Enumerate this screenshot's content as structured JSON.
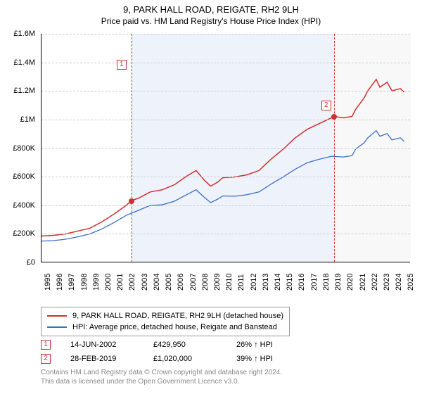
{
  "title_line1": "9, PARK HALL ROAD, REIGATE, RH2 9LH",
  "title_line2": "Price paid vs. HM Land Registry's House Price Index (HPI)",
  "chart": {
    "type": "line",
    "background_color": "#ffffff",
    "grid_color": "#cccccc",
    "axis_color": "#000000",
    "title_fontsize": 13,
    "label_fontsize": 11,
    "x_years": [
      1995,
      1996,
      1997,
      1998,
      1999,
      2000,
      2001,
      2002,
      2003,
      2004,
      2005,
      2006,
      2007,
      2008,
      2009,
      2010,
      2011,
      2012,
      2013,
      2014,
      2015,
      2016,
      2017,
      2018,
      2019,
      2020,
      2021,
      2022,
      2023,
      2024,
      2025
    ],
    "x_min": 1995,
    "x_max": 2025.5,
    "y_ticks": [
      0,
      200000,
      400000,
      600000,
      800000,
      1000000,
      1200000,
      1400000,
      1600000
    ],
    "y_labels": [
      "£0",
      "£200K",
      "£400K",
      "£600K",
      "£800K",
      "£1M",
      "£1.2M",
      "£1.4M",
      "£1.6M"
    ],
    "y_min": 0,
    "y_max": 1600000,
    "shade_ranges": [
      {
        "from_year": 2002.45,
        "to_year": 2019.16,
        "color": "#eef2fb"
      },
      {
        "from_year": 2019.16,
        "to_year": 2025.5,
        "color": "#f8f8f8"
      }
    ],
    "vlines": [
      {
        "year": 2002.45,
        "color": "#d02f2f"
      },
      {
        "year": 2019.16,
        "color": "#d02f2f"
      }
    ],
    "markers": [
      {
        "label": "1",
        "box_color": "#d02f2f",
        "box_year": 2001.2,
        "box_y": 1420000,
        "dot_year": 2002.45,
        "dot_price": 429950,
        "dot_color": "#d02f2f"
      },
      {
        "label": "2",
        "box_color": "#d02f2f",
        "box_year": 2018.1,
        "box_y": 1130000,
        "dot_year": 2019.16,
        "dot_price": 1020000,
        "dot_color": "#d02f2f"
      }
    ],
    "series": [
      {
        "name": "property",
        "label": "9, PARK HALL ROAD, REIGATE, RH2 9LH (detached house)",
        "color": "#d02f2f",
        "line_width": 1.5,
        "points": [
          [
            1995,
            180000
          ],
          [
            1996,
            185000
          ],
          [
            1997,
            195000
          ],
          [
            1998,
            215000
          ],
          [
            1999,
            235000
          ],
          [
            2000,
            280000
          ],
          [
            2001,
            335000
          ],
          [
            2002,
            395000
          ],
          [
            2002.45,
            429950
          ],
          [
            2003,
            445000
          ],
          [
            2004,
            490000
          ],
          [
            2005,
            505000
          ],
          [
            2006,
            540000
          ],
          [
            2007,
            600000
          ],
          [
            2007.8,
            640000
          ],
          [
            2008.5,
            570000
          ],
          [
            2009,
            530000
          ],
          [
            2009.6,
            560000
          ],
          [
            2010,
            590000
          ],
          [
            2011,
            595000
          ],
          [
            2012,
            610000
          ],
          [
            2013,
            640000
          ],
          [
            2014,
            720000
          ],
          [
            2015,
            790000
          ],
          [
            2016,
            870000
          ],
          [
            2017,
            930000
          ],
          [
            2018,
            970000
          ],
          [
            2019,
            1010000
          ],
          [
            2019.16,
            1020000
          ],
          [
            2020,
            1010000
          ],
          [
            2020.7,
            1020000
          ],
          [
            2021,
            1070000
          ],
          [
            2021.7,
            1150000
          ],
          [
            2022,
            1200000
          ],
          [
            2022.7,
            1280000
          ],
          [
            2023,
            1225000
          ],
          [
            2023.6,
            1260000
          ],
          [
            2024,
            1200000
          ],
          [
            2024.7,
            1215000
          ],
          [
            2025,
            1190000
          ]
        ]
      },
      {
        "name": "hpi",
        "label": "HPI: Average price, detached house, Reigate and Banstead",
        "color": "#3a6fc4",
        "line_width": 1.3,
        "points": [
          [
            1995,
            145000
          ],
          [
            1996,
            148000
          ],
          [
            1997,
            158000
          ],
          [
            1998,
            175000
          ],
          [
            1999,
            195000
          ],
          [
            2000,
            230000
          ],
          [
            2001,
            275000
          ],
          [
            2002,
            325000
          ],
          [
            2003,
            360000
          ],
          [
            2004,
            395000
          ],
          [
            2005,
            400000
          ],
          [
            2006,
            425000
          ],
          [
            2007,
            470000
          ],
          [
            2007.8,
            505000
          ],
          [
            2008.5,
            450000
          ],
          [
            2009,
            415000
          ],
          [
            2009.6,
            440000
          ],
          [
            2010,
            462000
          ],
          [
            2011,
            460000
          ],
          [
            2012,
            470000
          ],
          [
            2013,
            490000
          ],
          [
            2014,
            545000
          ],
          [
            2015,
            595000
          ],
          [
            2016,
            650000
          ],
          [
            2017,
            695000
          ],
          [
            2018,
            720000
          ],
          [
            2019,
            740000
          ],
          [
            2020,
            735000
          ],
          [
            2020.7,
            745000
          ],
          [
            2021,
            790000
          ],
          [
            2021.7,
            835000
          ],
          [
            2022,
            870000
          ],
          [
            2022.7,
            920000
          ],
          [
            2023,
            880000
          ],
          [
            2023.6,
            900000
          ],
          [
            2024,
            855000
          ],
          [
            2024.7,
            870000
          ],
          [
            2025,
            845000
          ]
        ]
      }
    ]
  },
  "sales": [
    {
      "n": "1",
      "date": "14-JUN-2002",
      "price": "£429,950",
      "pct": "26% ↑ HPI",
      "color": "#d02f2f"
    },
    {
      "n": "2",
      "date": "28-FEB-2019",
      "price": "£1,020,000",
      "pct": "39% ↑ HPI",
      "color": "#d02f2f"
    }
  ],
  "footer_line1": "Contains HM Land Registry data © Crown copyright and database right 2024.",
  "footer_line2": "This data is licensed under the Open Government Licence v3.0."
}
